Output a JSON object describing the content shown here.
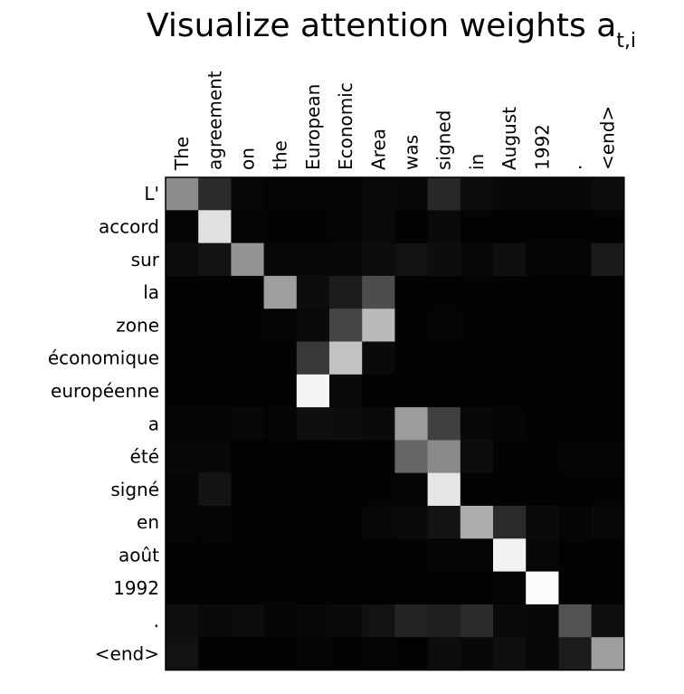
{
  "chart_data": {
    "type": "heatmap",
    "title": "Visualize attention weights a",
    "title_subscript": "t,i",
    "x_tick_labels": [
      "The",
      "agreement",
      "on",
      "the",
      "European",
      "Economic",
      "Area",
      "was",
      "signed",
      "in",
      "August",
      "1992",
      ".",
      "<end>"
    ],
    "y_tick_labels": [
      "L'",
      "accord",
      "sur",
      "la",
      "zone",
      "économique",
      "européenne",
      "a",
      "été",
      "signé",
      "en",
      "août",
      "1992",
      ".",
      "<end>"
    ],
    "colormap": "gray",
    "value_range": [
      0,
      1
    ],
    "values": [
      [
        0.55,
        0.17,
        0.03,
        0.02,
        0.02,
        0.02,
        0.04,
        0.03,
        0.16,
        0.05,
        0.03,
        0.03,
        0.03,
        0.05
      ],
      [
        0.02,
        0.88,
        0.02,
        0.01,
        0.01,
        0.02,
        0.04,
        0.01,
        0.04,
        0.01,
        0.01,
        0.01,
        0.01,
        0.01
      ],
      [
        0.05,
        0.08,
        0.58,
        0.03,
        0.03,
        0.03,
        0.05,
        0.07,
        0.05,
        0.03,
        0.06,
        0.02,
        0.02,
        0.1
      ],
      [
        0.01,
        0.01,
        0.01,
        0.62,
        0.05,
        0.11,
        0.3,
        0.01,
        0.01,
        0.01,
        0.01,
        0.01,
        0.01,
        0.01
      ],
      [
        0.01,
        0.01,
        0.01,
        0.02,
        0.04,
        0.27,
        0.73,
        0.01,
        0.02,
        0.01,
        0.01,
        0.01,
        0.01,
        0.01
      ],
      [
        0.01,
        0.01,
        0.01,
        0.01,
        0.22,
        0.76,
        0.04,
        0.01,
        0.01,
        0.01,
        0.01,
        0.01,
        0.01,
        0.01
      ],
      [
        0.01,
        0.01,
        0.01,
        0.01,
        0.96,
        0.04,
        0.01,
        0.01,
        0.01,
        0.01,
        0.01,
        0.01,
        0.01,
        0.01
      ],
      [
        0.02,
        0.02,
        0.03,
        0.02,
        0.06,
        0.05,
        0.04,
        0.61,
        0.25,
        0.03,
        0.02,
        0.01,
        0.01,
        0.01
      ],
      [
        0.03,
        0.03,
        0.01,
        0.01,
        0.01,
        0.01,
        0.01,
        0.4,
        0.54,
        0.05,
        0.01,
        0.01,
        0.02,
        0.02
      ],
      [
        0.02,
        0.08,
        0.01,
        0.01,
        0.01,
        0.01,
        0.01,
        0.02,
        0.9,
        0.01,
        0.01,
        0.01,
        0.01,
        0.01
      ],
      [
        0.02,
        0.02,
        0.01,
        0.01,
        0.01,
        0.01,
        0.03,
        0.04,
        0.08,
        0.68,
        0.17,
        0.04,
        0.02,
        0.03
      ],
      [
        0.01,
        0.01,
        0.01,
        0.01,
        0.01,
        0.01,
        0.01,
        0.01,
        0.02,
        0.02,
        0.95,
        0.03,
        0.01,
        0.01
      ],
      [
        0.01,
        0.01,
        0.01,
        0.01,
        0.01,
        0.01,
        0.01,
        0.01,
        0.01,
        0.01,
        0.02,
        0.99,
        0.01,
        0.01
      ],
      [
        0.06,
        0.04,
        0.05,
        0.02,
        0.03,
        0.04,
        0.07,
        0.14,
        0.12,
        0.17,
        0.04,
        0.03,
        0.32,
        0.06
      ],
      [
        0.07,
        0.01,
        0.01,
        0.01,
        0.02,
        0.01,
        0.02,
        0.01,
        0.05,
        0.03,
        0.06,
        0.03,
        0.11,
        0.62
      ]
    ],
    "grid": false,
    "axis_position": "x labels top, y labels left"
  }
}
